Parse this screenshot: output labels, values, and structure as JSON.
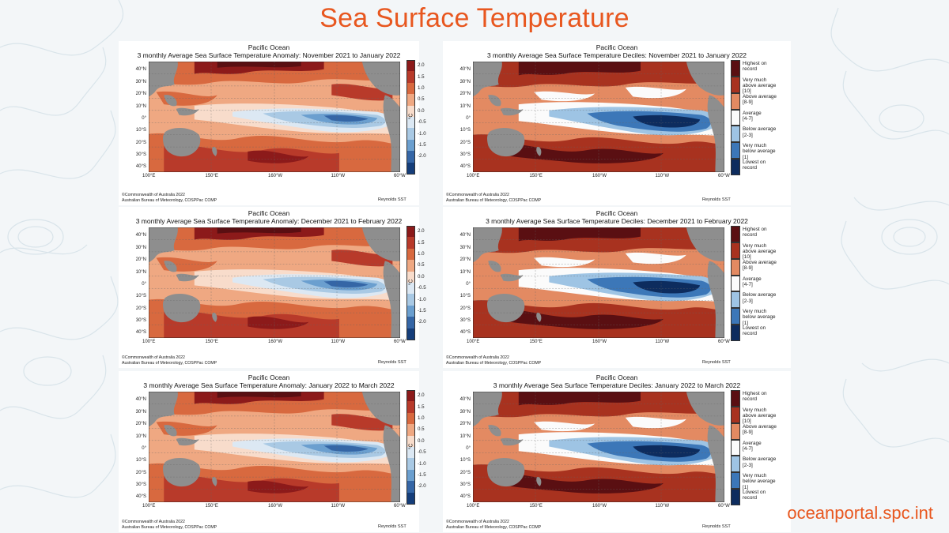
{
  "slide": {
    "title": "Sea Surface Temperature",
    "footer": "oceanportal.spc.int",
    "title_color": "#e8571f"
  },
  "common": {
    "ocean": "Pacific Ocean",
    "credit_line1": "©Commonwealth of Australia 2022",
    "credit_line2": "Australian Bureau of Meteorology, COSPPac COMP",
    "source": "Reynolds SST",
    "latitudes": [
      "40°N",
      "30°N",
      "20°N",
      "10°N",
      "0°",
      "10°S",
      "20°S",
      "30°S",
      "40°S"
    ],
    "longitudes": [
      "100°E",
      "150°E",
      "160°W",
      "110°W",
      "60°W"
    ],
    "land_color": "#8e8e8e"
  },
  "anomaly_panels": [
    {
      "subtitle": "3 monthly Average Sea Surface Temperature Anomaly: November 2021 to January 2022"
    },
    {
      "subtitle": "3 monthly Average Sea Surface Temperature Anomaly: December 2021 to February 2022"
    },
    {
      "subtitle": "3 monthly Average Sea Surface Temperature Anomaly: January 2022 to March 2022"
    }
  ],
  "decile_panels": [
    {
      "subtitle": "3 monthly Average Sea Surface Temperature Deciles: November 2021 to January 2022"
    },
    {
      "subtitle": "3 monthly Average Sea Surface Temperature Deciles: December 2021 to February 2022"
    },
    {
      "subtitle": "3 monthly Average Sea Surface Temperature Deciles: January 2022 to March 2022"
    }
  ],
  "anomaly_scale": {
    "unit": "°C",
    "ticks": [
      "2.0",
      "1.5",
      "1.0",
      "0.5",
      "0.0",
      "-0.5",
      "-1.0",
      "-1.5",
      "-2.0"
    ],
    "colors": [
      "#8c1a1a",
      "#b83a2a",
      "#d8693f",
      "#efa882",
      "#f8dccb",
      "#dce8f3",
      "#a9c9e4",
      "#6b9fcf",
      "#3566a6",
      "#163e7a"
    ]
  },
  "decile_scale": {
    "categories": [
      {
        "label": "Highest on\nrecord",
        "color": "#5a0f12"
      },
      {
        "label": "Very much\nabove average\n[10]",
        "color": "#a8321f"
      },
      {
        "label": "Above average\n[8-9]",
        "color": "#e38a62"
      },
      {
        "label": "Average\n[4-7]",
        "color": "#fbfbfb"
      },
      {
        "label": "Below average\n[2-3]",
        "color": "#9ec4e4"
      },
      {
        "label": "Very much\nbelow average\n[1]",
        "color": "#3c77b8"
      },
      {
        "label": "Lowest on\nrecord",
        "color": "#0d2c5e"
      }
    ]
  }
}
